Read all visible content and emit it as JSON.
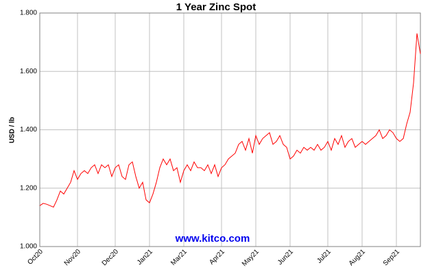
{
  "chart_data": {
    "type": "line",
    "title": "1 Year Zinc Spot",
    "ylabel": "USD / lb",
    "annotation": "www.kitco.com",
    "categories": [
      "Oct20",
      null,
      null,
      null,
      null,
      null,
      null,
      null,
      null,
      null,
      null,
      "Nov20",
      null,
      null,
      null,
      null,
      null,
      null,
      null,
      null,
      null,
      null,
      "Dec20",
      null,
      null,
      null,
      null,
      null,
      null,
      null,
      null,
      null,
      "Jan21",
      null,
      null,
      null,
      null,
      null,
      null,
      null,
      null,
      null,
      "Mar21",
      null,
      null,
      null,
      null,
      null,
      null,
      null,
      null,
      null,
      null,
      "Apr21",
      null,
      null,
      null,
      null,
      null,
      null,
      null,
      null,
      null,
      "May21",
      null,
      null,
      null,
      null,
      null,
      null,
      null,
      null,
      null,
      "Jun21",
      null,
      null,
      null,
      null,
      null,
      null,
      null,
      null,
      null,
      null,
      "Jul21",
      null,
      null,
      null,
      null,
      null,
      null,
      null,
      null,
      null,
      "Aug21",
      null,
      null,
      null,
      null,
      null,
      null,
      null,
      null,
      null,
      "Sep21",
      null,
      null,
      null,
      null,
      null,
      null,
      null
    ],
    "series": [
      {
        "name": "Zinc",
        "color": "#ff0000",
        "values": [
          1.14,
          1.148,
          1.145,
          1.14,
          1.135,
          1.16,
          1.19,
          1.18,
          1.2,
          1.22,
          1.26,
          1.23,
          1.25,
          1.26,
          1.25,
          1.27,
          1.28,
          1.25,
          1.28,
          1.27,
          1.28,
          1.24,
          1.27,
          1.28,
          1.24,
          1.23,
          1.28,
          1.29,
          1.24,
          1.2,
          1.22,
          1.16,
          1.15,
          1.18,
          1.22,
          1.27,
          1.3,
          1.28,
          1.3,
          1.26,
          1.27,
          1.22,
          1.26,
          1.28,
          1.26,
          1.29,
          1.27,
          1.27,
          1.26,
          1.28,
          1.25,
          1.28,
          1.24,
          1.27,
          1.28,
          1.3,
          1.31,
          1.32,
          1.35,
          1.36,
          1.33,
          1.37,
          1.32,
          1.38,
          1.35,
          1.37,
          1.38,
          1.39,
          1.35,
          1.36,
          1.38,
          1.35,
          1.34,
          1.3,
          1.31,
          1.33,
          1.32,
          1.34,
          1.33,
          1.34,
          1.33,
          1.35,
          1.33,
          1.34,
          1.36,
          1.33,
          1.37,
          1.35,
          1.38,
          1.34,
          1.36,
          1.37,
          1.34,
          1.35,
          1.36,
          1.35,
          1.36,
          1.37,
          1.38,
          1.4,
          1.37,
          1.38,
          1.4,
          1.39,
          1.37,
          1.36,
          1.37,
          1.42,
          1.46,
          1.56,
          1.73,
          1.66
        ]
      }
    ],
    "ylim": [
      1,
      1.8
    ],
    "yticks": [
      {
        "value": 1,
        "label": "1.000"
      },
      {
        "value": 1.2,
        "label": "1.200"
      },
      {
        "value": 1.4,
        "label": "1.400"
      },
      {
        "value": 1.6,
        "label": "1.600"
      },
      {
        "value": 1.8,
        "label": "1.800"
      }
    ],
    "grid": true
  }
}
